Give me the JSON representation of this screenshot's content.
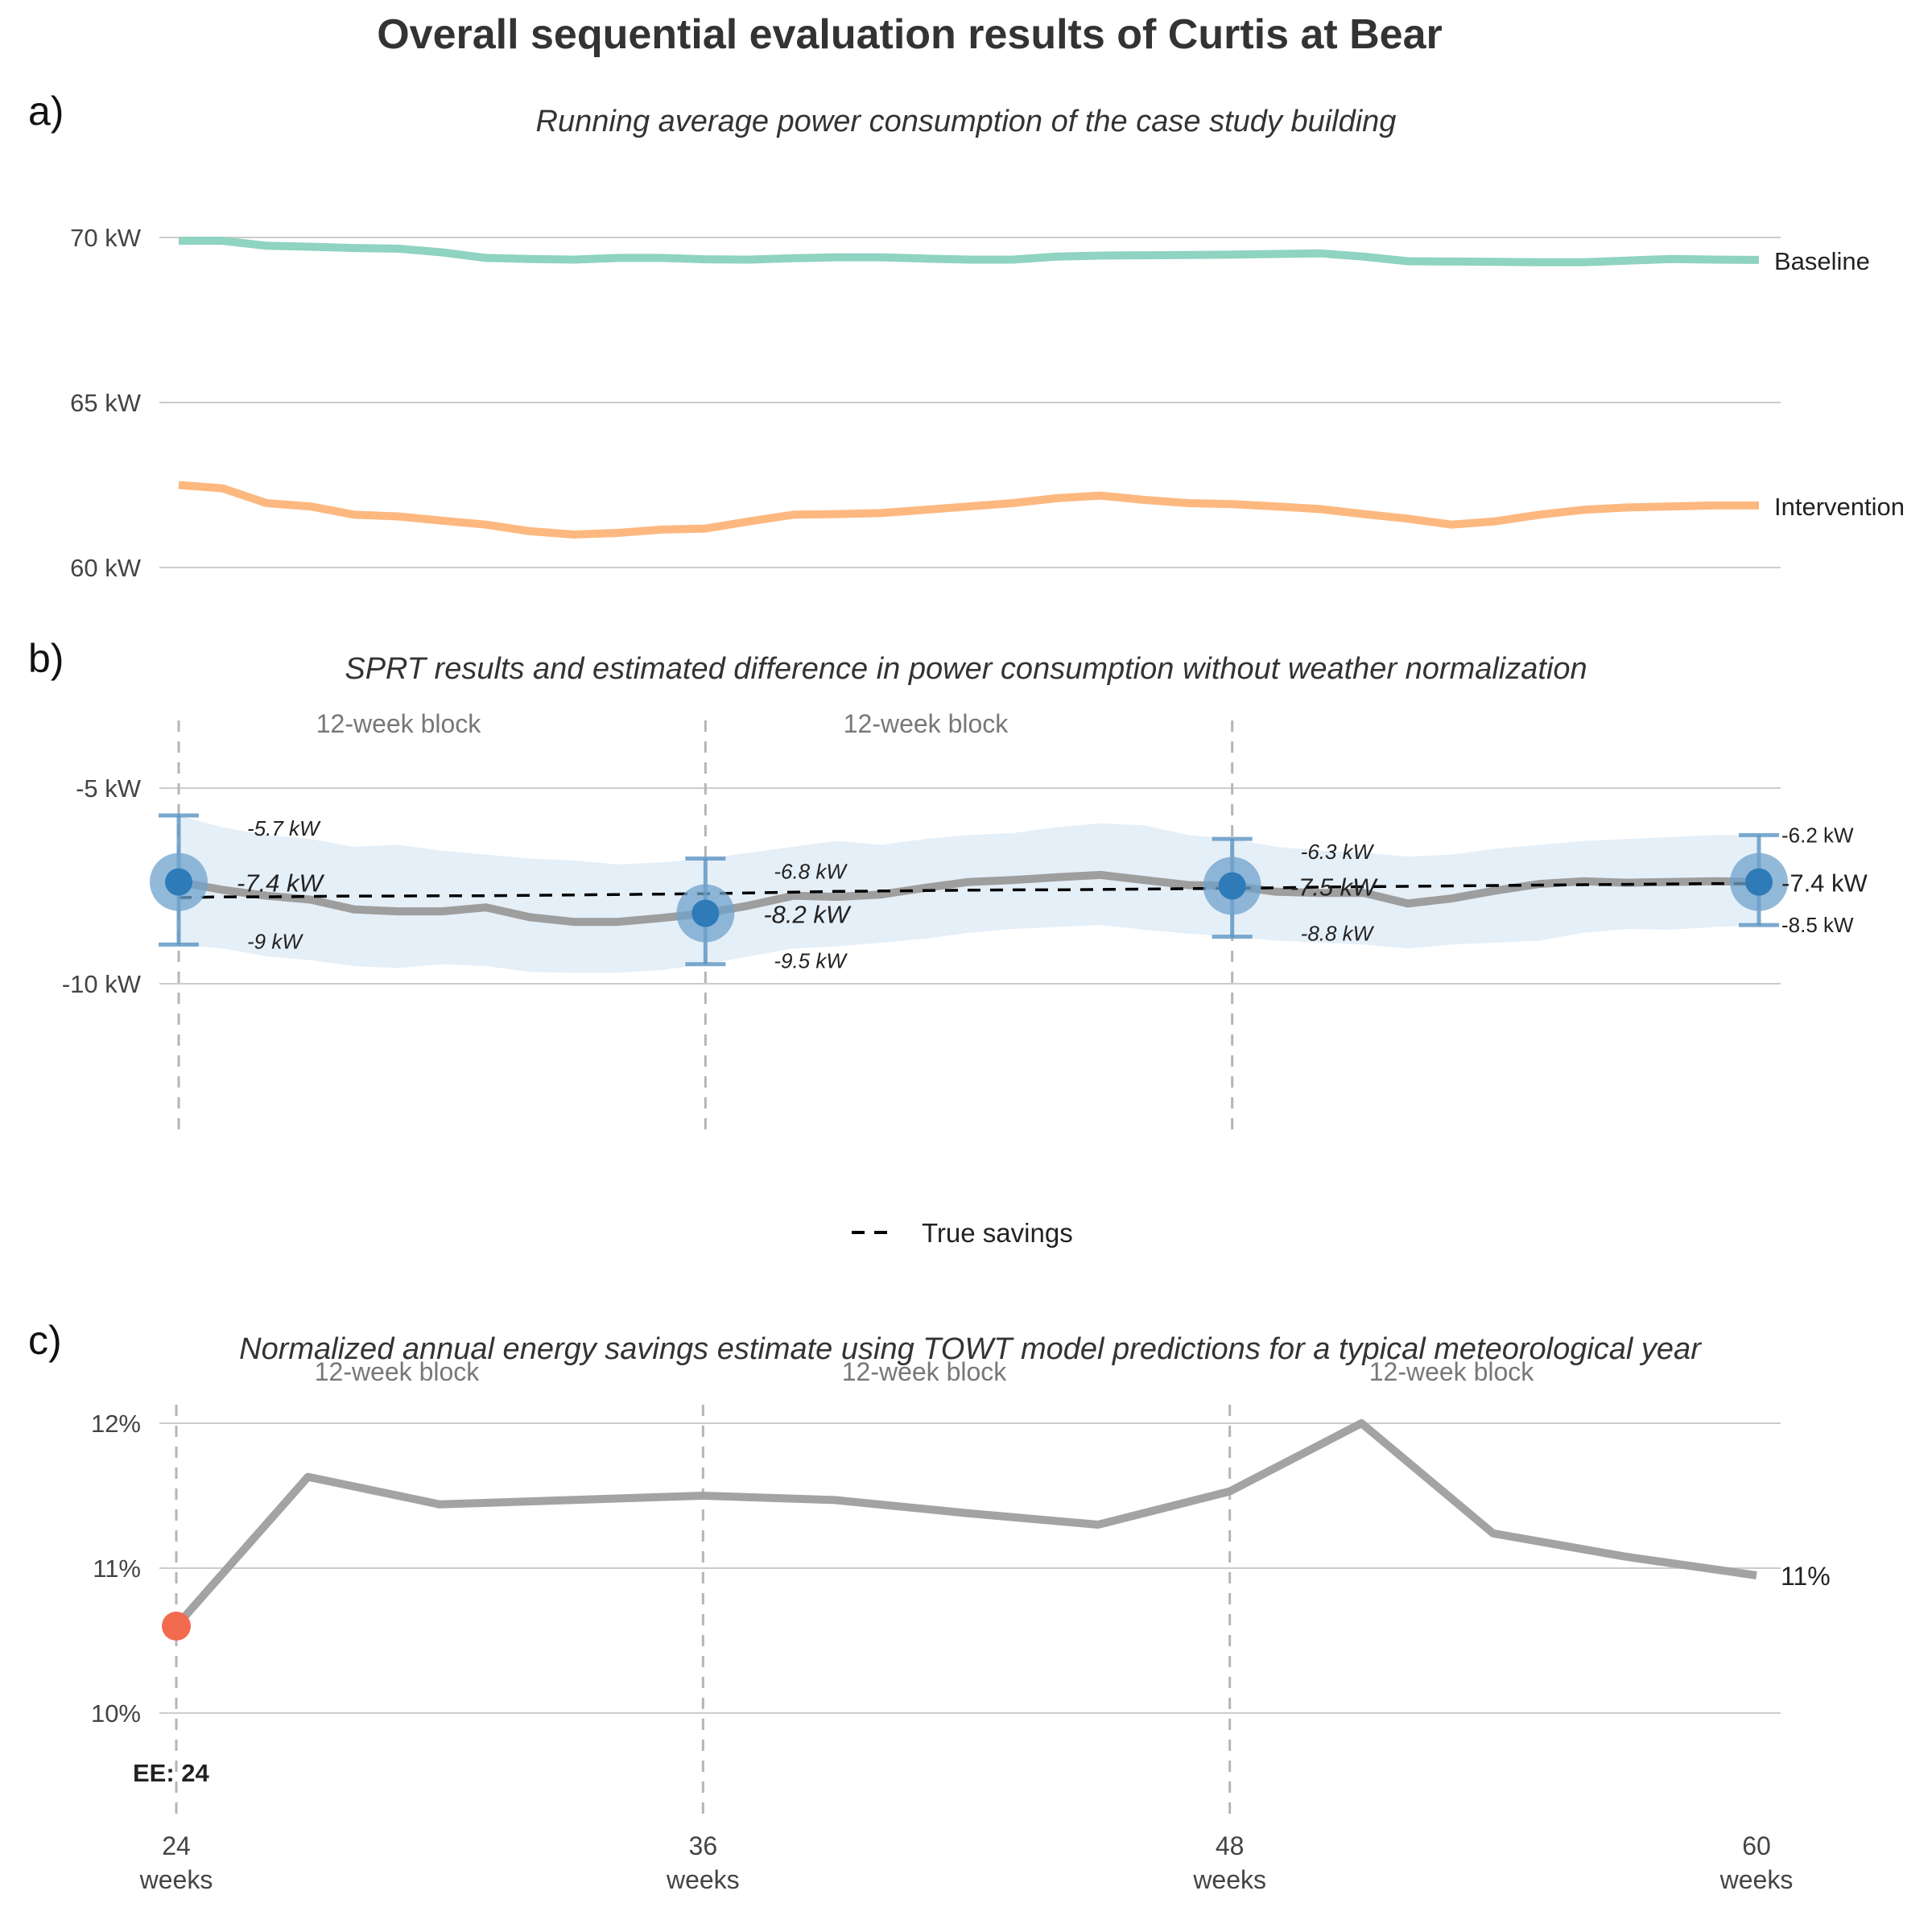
{
  "title": "Overall sequential evaluation results of Curtis at Bear",
  "panel_a": {
    "tag": "a)",
    "subtitle": "Running average power consumption of the case study building",
    "y_ticks": [
      {
        "value": 70,
        "label": "70 kW"
      },
      {
        "value": 65,
        "label": "65 kW"
      },
      {
        "value": 60,
        "label": "60 kW"
      }
    ],
    "series_labels": {
      "baseline": "Baseline",
      "intervention": "Intervention"
    }
  },
  "panel_b": {
    "tag": "b)",
    "subtitle": "SPRT results and estimated difference in power consumption without weather normalization",
    "y_ticks": [
      {
        "value": -5,
        "label": "-5 kW"
      },
      {
        "value": -10,
        "label": "-10 kW"
      }
    ],
    "block_labels": [
      "12-week block",
      "12-week block"
    ],
    "legend_label": "True savings",
    "checkpoints": [
      {
        "week": 24,
        "estimate": -7.4,
        "upper": -5.7,
        "lower": -9.0,
        "estimate_label": "-7.4 kW",
        "upper_label": "-5.7 kW",
        "lower_label": "-9 kW"
      },
      {
        "week": 36,
        "estimate": -8.2,
        "upper": -6.8,
        "lower": -9.5,
        "estimate_label": "-8.2 kW",
        "upper_label": "-6.8 kW",
        "lower_label": "-9.5 kW"
      },
      {
        "week": 48,
        "estimate": -7.5,
        "upper": -6.3,
        "lower": -8.8,
        "estimate_label": "-7.5 kW",
        "upper_label": "-6.3 kW",
        "lower_label": "-8.8 kW"
      },
      {
        "week": 60,
        "estimate": -7.4,
        "upper": -6.2,
        "lower": -8.5,
        "estimate_label": "-7.4 kW",
        "upper_label": "-6.2 kW",
        "lower_label": "-8.5 kW"
      }
    ]
  },
  "panel_c": {
    "tag": "c)",
    "subtitle": "Normalized annual energy savings estimate using TOWT model predictions for a typical meteorological year",
    "y_ticks": [
      {
        "value": 12,
        "label": "12%"
      },
      {
        "value": 11,
        "label": "11%"
      },
      {
        "value": 10,
        "label": "10%"
      }
    ],
    "block_labels": [
      "12-week block",
      "12-week block",
      "12-week block"
    ],
    "end_label": "11%",
    "ee_label": "EE: 24",
    "x_ticks": [
      {
        "week": 24,
        "line1": "24",
        "line2": "weeks"
      },
      {
        "week": 36,
        "line1": "36",
        "line2": "weeks"
      },
      {
        "week": 48,
        "line1": "48",
        "line2": "weeks"
      },
      {
        "week": 60,
        "line1": "60",
        "line2": "weeks"
      }
    ]
  },
  "colors": {
    "baseline": "#8fd3c1",
    "intervention": "#fdb880",
    "estimate_line": "#9e9e9e",
    "band": "#dceaf5",
    "marker": "#2e7bb8",
    "halo": "#6fa1cc",
    "errorbar": "#5b93c2",
    "savings_line": "#a3a3a3",
    "early_exit": "#f26b4f"
  },
  "chart_data": [
    {
      "type": "line",
      "title": "Running average power consumption of the case study building",
      "xlabel": "",
      "ylabel": "",
      "x": [
        24,
        25,
        26,
        27,
        28,
        29,
        30,
        31,
        32,
        33,
        34,
        35,
        36,
        37,
        38,
        39,
        40,
        41,
        42,
        43,
        44,
        45,
        46,
        47,
        48,
        49,
        50,
        51,
        52,
        53,
        54,
        55,
        56,
        57,
        58,
        59,
        60
      ],
      "ylim": [
        59.5,
        72
      ],
      "series": [
        {
          "name": "Baseline",
          "values": [
            69.9,
            69.9,
            69.75,
            69.72,
            69.68,
            69.66,
            69.55,
            69.38,
            69.35,
            69.33,
            69.38,
            69.38,
            69.34,
            69.33,
            69.37,
            69.4,
            69.4,
            69.36,
            69.33,
            69.33,
            69.42,
            69.45,
            69.46,
            69.47,
            69.48,
            69.5,
            69.52,
            69.42,
            69.28,
            69.27,
            69.26,
            69.25,
            69.25,
            69.3,
            69.35,
            69.33,
            69.32
          ]
        },
        {
          "name": "Intervention",
          "values": [
            62.5,
            62.4,
            61.95,
            61.85,
            61.6,
            61.55,
            61.42,
            61.3,
            61.1,
            61.0,
            61.05,
            61.15,
            61.18,
            61.4,
            61.6,
            61.62,
            61.65,
            61.75,
            61.85,
            61.95,
            62.1,
            62.18,
            62.05,
            61.95,
            61.92,
            61.85,
            61.77,
            61.62,
            61.48,
            61.3,
            61.4,
            61.6,
            61.75,
            61.82,
            61.85,
            61.88,
            61.88
          ]
        }
      ]
    },
    {
      "type": "line",
      "title": "SPRT results and estimated difference in power consumption without weather normalization",
      "xlabel": "",
      "ylabel": "",
      "x": [
        24,
        25,
        26,
        27,
        28,
        29,
        30,
        31,
        32,
        33,
        34,
        35,
        36,
        37,
        38,
        39,
        40,
        41,
        42,
        43,
        44,
        45,
        46,
        47,
        48,
        49,
        50,
        51,
        52,
        53,
        54,
        55,
        56,
        57,
        58,
        59,
        60
      ],
      "ylim": [
        -14,
        -3
      ],
      "series": [
        {
          "name": "Estimated difference",
          "values": [
            -7.4,
            -7.6,
            -7.75,
            -7.85,
            -8.1,
            -8.15,
            -8.15,
            -8.05,
            -8.3,
            -8.42,
            -8.42,
            -8.32,
            -8.2,
            -8.0,
            -7.75,
            -7.78,
            -7.72,
            -7.55,
            -7.4,
            -7.35,
            -7.28,
            -7.22,
            -7.35,
            -7.48,
            -7.5,
            -7.65,
            -7.68,
            -7.68,
            -7.95,
            -7.82,
            -7.62,
            -7.45,
            -7.38,
            -7.42,
            -7.4,
            -7.38,
            -7.4
          ]
        },
        {
          "name": "Upper bound",
          "values": [
            -5.7,
            -6.0,
            -6.2,
            -6.3,
            -6.5,
            -6.45,
            -6.6,
            -6.7,
            -6.8,
            -6.85,
            -6.95,
            -6.9,
            -6.8,
            -6.65,
            -6.5,
            -6.35,
            -6.45,
            -6.3,
            -6.2,
            -6.15,
            -6.0,
            -5.9,
            -5.95,
            -6.2,
            -6.3,
            -6.5,
            -6.6,
            -6.65,
            -6.75,
            -6.7,
            -6.55,
            -6.45,
            -6.35,
            -6.3,
            -6.25,
            -6.2,
            -6.2
          ]
        },
        {
          "name": "Lower bound",
          "values": [
            -9.0,
            -9.1,
            -9.3,
            -9.4,
            -9.55,
            -9.6,
            -9.5,
            -9.55,
            -9.7,
            -9.72,
            -9.72,
            -9.65,
            -9.5,
            -9.3,
            -9.1,
            -9.05,
            -8.95,
            -8.85,
            -8.7,
            -8.6,
            -8.55,
            -8.5,
            -8.62,
            -8.72,
            -8.8,
            -8.9,
            -8.95,
            -9.0,
            -9.1,
            -9.0,
            -8.95,
            -8.9,
            -8.7,
            -8.6,
            -8.62,
            -8.55,
            -8.5
          ]
        },
        {
          "name": "True savings",
          "values": [
            -7.8,
            -7.78,
            -7.78,
            -7.77,
            -7.76,
            -7.76,
            -7.75,
            -7.75,
            -7.74,
            -7.73,
            -7.72,
            -7.71,
            -7.7,
            -7.68,
            -7.66,
            -7.64,
            -7.63,
            -7.62,
            -7.61,
            -7.6,
            -7.6,
            -7.59,
            -7.58,
            -7.57,
            -7.56,
            -7.55,
            -7.53,
            -7.52,
            -7.51,
            -7.5,
            -7.49,
            -7.48,
            -7.47,
            -7.46,
            -7.45,
            -7.44,
            -7.44
          ]
        }
      ]
    },
    {
      "type": "line",
      "title": "Normalized annual energy savings estimate using TOWT model predictions for a typical meteorological year",
      "xlabel": "",
      "ylabel": "",
      "x": [
        24,
        27,
        30,
        33,
        36,
        39,
        42,
        45,
        48,
        51,
        54,
        57,
        60
      ],
      "ylim": [
        9.2,
        12.35
      ],
      "series": [
        {
          "name": "Savings",
          "values": [
            10.6,
            11.63,
            11.44,
            11.47,
            11.5,
            11.47,
            11.38,
            11.3,
            11.53,
            12.0,
            11.24,
            11.08,
            10.95
          ]
        }
      ]
    }
  ]
}
